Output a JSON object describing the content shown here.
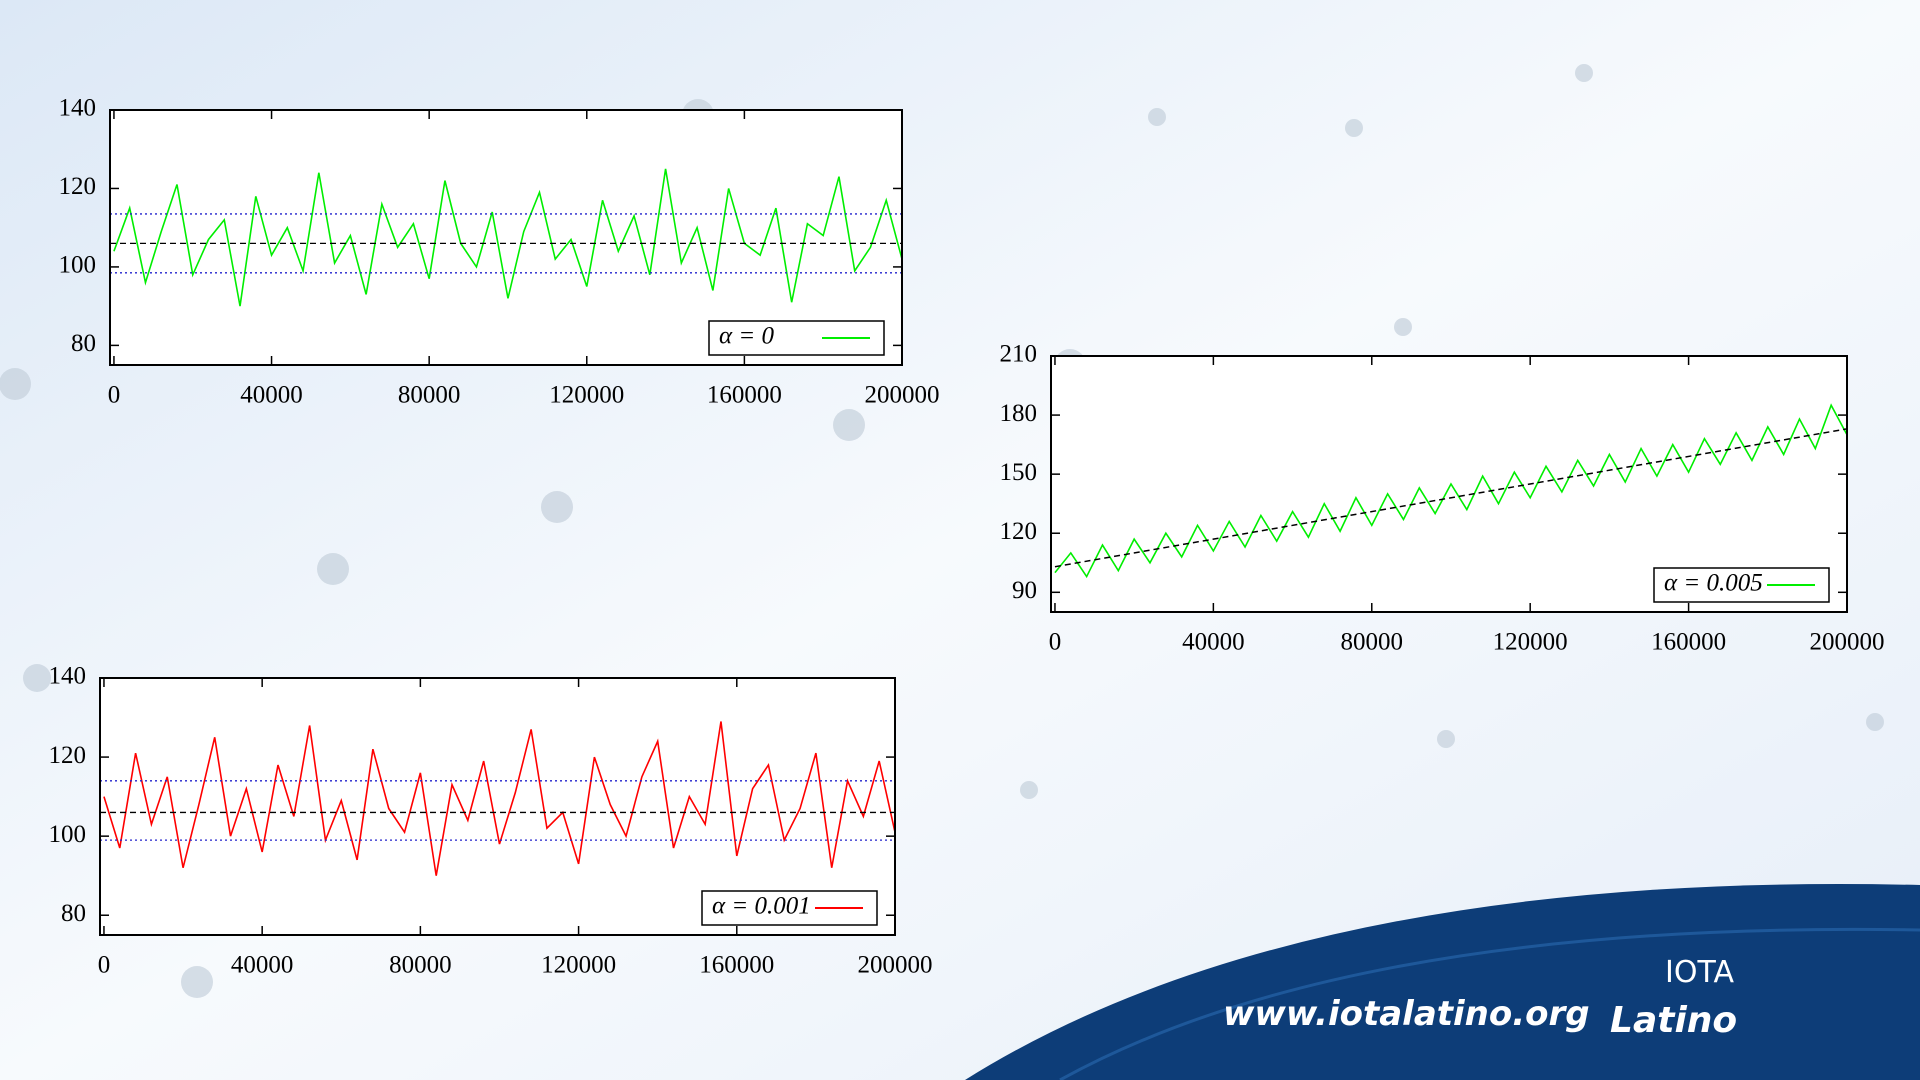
{
  "chart_data": [
    {
      "type": "line",
      "x": [
        0,
        4000,
        8000,
        12000,
        16000,
        20000,
        24000,
        28000,
        32000,
        36000,
        40000,
        44000,
        48000,
        52000,
        56000,
        60000,
        64000,
        68000,
        72000,
        76000,
        80000,
        84000,
        88000,
        92000,
        96000,
        100000,
        104000,
        108000,
        112000,
        116000,
        120000,
        124000,
        128000,
        132000,
        136000,
        140000,
        144000,
        148000,
        152000,
        156000,
        160000,
        164000,
        168000,
        172000,
        176000,
        180000,
        184000,
        188000,
        192000,
        196000,
        200000
      ],
      "series": [
        {
          "name": "α = 0",
          "color": "#00ee00",
          "values": [
            104,
            115,
            96,
            109,
            121,
            98,
            107,
            112,
            90,
            118,
            103,
            110,
            99,
            124,
            101,
            108,
            93,
            116,
            105,
            111,
            97,
            122,
            106,
            100,
            114,
            92,
            109,
            119,
            102,
            107,
            95,
            117,
            104,
            113,
            98,
            125,
            101,
            110,
            94,
            120,
            106,
            103,
            115,
            91,
            111,
            108,
            123,
            99,
            105,
            117,
            102
          ]
        }
      ],
      "hlines": [
        {
          "value": 106,
          "color": "#000000",
          "dash": "6 4"
        },
        {
          "value": 98.5,
          "color": "#2222cc",
          "dash": "2 3"
        },
        {
          "value": 113.5,
          "color": "#2222cc",
          "dash": "2 3"
        }
      ],
      "xlim": [
        -1000,
        200000
      ],
      "xticks": [
        0,
        40000,
        80000,
        120000,
        160000,
        200000
      ],
      "ylim": [
        75,
        140
      ],
      "yticks": [
        80,
        100,
        120,
        140
      ],
      "legend": "lower right"
    },
    {
      "type": "line",
      "x": [
        0,
        4000,
        8000,
        12000,
        16000,
        20000,
        24000,
        28000,
        32000,
        36000,
        40000,
        44000,
        48000,
        52000,
        56000,
        60000,
        64000,
        68000,
        72000,
        76000,
        80000,
        84000,
        88000,
        92000,
        96000,
        100000,
        104000,
        108000,
        112000,
        116000,
        120000,
        124000,
        128000,
        132000,
        136000,
        140000,
        144000,
        148000,
        152000,
        156000,
        160000,
        164000,
        168000,
        172000,
        176000,
        180000,
        184000,
        188000,
        192000,
        196000,
        200000
      ],
      "series": [
        {
          "name": "α = 0.005",
          "color": "#00ee00",
          "values": [
            100,
            110,
            98,
            114,
            101,
            117,
            105,
            120,
            108,
            124,
            111,
            126,
            113,
            129,
            116,
            131,
            118,
            135,
            121,
            138,
            124,
            140,
            127,
            143,
            130,
            145,
            132,
            149,
            135,
            151,
            138,
            154,
            141,
            157,
            144,
            160,
            146,
            163,
            149,
            165,
            151,
            168,
            155,
            171,
            157,
            174,
            160,
            178,
            163,
            185,
            170
          ]
        },
        {
          "color": "#000000",
          "dash": "6 4",
          "x": [
            0,
            200000
          ],
          "values": [
            103,
            173
          ]
        }
      ],
      "xlim": [
        -1000,
        200000
      ],
      "xticks": [
        0,
        40000,
        80000,
        120000,
        160000,
        200000
      ],
      "ylim": [
        80,
        210
      ],
      "yticks": [
        90,
        120,
        150,
        180,
        210
      ],
      "legend": "lower right"
    },
    {
      "type": "line",
      "x": [
        0,
        4000,
        8000,
        12000,
        16000,
        20000,
        24000,
        28000,
        32000,
        36000,
        40000,
        44000,
        48000,
        52000,
        56000,
        60000,
        64000,
        68000,
        72000,
        76000,
        80000,
        84000,
        88000,
        92000,
        96000,
        100000,
        104000,
        108000,
        112000,
        116000,
        120000,
        124000,
        128000,
        132000,
        136000,
        140000,
        144000,
        148000,
        152000,
        156000,
        160000,
        164000,
        168000,
        172000,
        176000,
        180000,
        184000,
        188000,
        192000,
        196000,
        200000
      ],
      "series": [
        {
          "name": "α = 0.001",
          "color": "#ff0000",
          "values": [
            110,
            97,
            121,
            103,
            115,
            92,
            108,
            125,
            100,
            112,
            96,
            118,
            105,
            128,
            99,
            109,
            94,
            122,
            107,
            101,
            116,
            90,
            113,
            104,
            119,
            98,
            111,
            127,
            102,
            106,
            93,
            120,
            108,
            100,
            115,
            124,
            97,
            110,
            103,
            129,
            95,
            112,
            118,
            99,
            107,
            121,
            92,
            114,
            105,
            119,
            101
          ]
        }
      ],
      "hlines": [
        {
          "value": 106,
          "color": "#000000",
          "dash": "6 4"
        },
        {
          "value": 99,
          "color": "#2222cc",
          "dash": "2 3"
        },
        {
          "value": 114,
          "color": "#2222cc",
          "dash": "2 3"
        }
      ],
      "xlim": [
        -1000,
        200000
      ],
      "xticks": [
        0,
        40000,
        80000,
        120000,
        160000,
        200000
      ],
      "ylim": [
        75,
        140
      ],
      "yticks": [
        80,
        100,
        120,
        140
      ],
      "legend": "lower right"
    }
  ],
  "branding": {
    "url": "www.iotalatino.org",
    "logo_top": "IOTA",
    "logo_bottom": "Latino"
  }
}
